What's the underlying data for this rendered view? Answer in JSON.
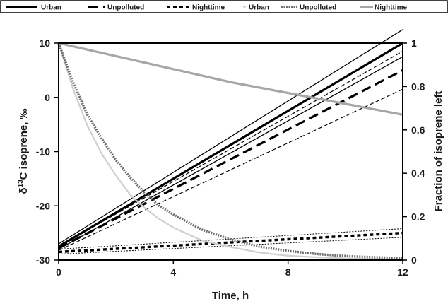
{
  "chart_data": {
    "type": "line",
    "xlabel": "Time, h",
    "ylabel_left": "δ13C isoprene, ‰",
    "ylabel_left_parts": [
      "δ",
      "13",
      "C isoprene, ‰"
    ],
    "ylabel_right": "Fraction of isoprene left",
    "xlim": [
      0,
      12
    ],
    "ylim_left": [
      -30,
      10
    ],
    "ylim_right": [
      0,
      1
    ],
    "x_ticks": [
      0,
      4,
      8,
      12
    ],
    "y_left_ticks": [
      -30,
      -20,
      -10,
      0,
      10
    ],
    "y_right_ticks": [
      0,
      0.2,
      0.4,
      0.6,
      0.8,
      1
    ],
    "y_right_tick_labels": [
      "0",
      "0.2",
      "0.4",
      "0.6",
      "0.8",
      "1"
    ],
    "legend": [
      {
        "label": "Urban",
        "color": "#000000",
        "style": "solid-thick"
      },
      {
        "label": "Unpolluted",
        "color": "#000000",
        "style": "dashed-thick"
      },
      {
        "label": "Nighttime",
        "color": "#000000",
        "style": "dashed-short"
      },
      {
        "label": "Urban",
        "color": "#cfcfcf",
        "style": "solid"
      },
      {
        "label": "Unpolluted",
        "color": "#6e6e6e",
        "style": "dotted-band"
      },
      {
        "label": "Nighttime",
        "color": "#a6a6a6",
        "style": "solid-thick"
      }
    ],
    "series": [
      {
        "axis": "left",
        "color": "#000000",
        "style": "solid-thick",
        "x": [
          0,
          12
        ],
        "y": [
          -27.5,
          10
        ]
      },
      {
        "axis": "left",
        "color": "#000000",
        "style": "solid-thin",
        "x": [
          0,
          12
        ],
        "y": [
          -27.0,
          12.5
        ]
      },
      {
        "axis": "left",
        "color": "#000000",
        "style": "solid-thin",
        "x": [
          0,
          12
        ],
        "y": [
          -28.0,
          7.5
        ]
      },
      {
        "axis": "left",
        "color": "#000000",
        "style": "dashed-thick",
        "x": [
          0,
          12
        ],
        "y": [
          -27.8,
          5.0
        ]
      },
      {
        "axis": "left",
        "color": "#000000",
        "style": "dashed-thin",
        "x": [
          0,
          12
        ],
        "y": [
          -27.5,
          8.5
        ]
      },
      {
        "axis": "left",
        "color": "#000000",
        "style": "dashed-thin",
        "x": [
          0,
          12
        ],
        "y": [
          -28.2,
          1.5
        ]
      },
      {
        "axis": "left",
        "color": "#000000",
        "style": "dashed-short",
        "x": [
          0,
          12
        ],
        "y": [
          -28.5,
          -25.0
        ]
      },
      {
        "axis": "left",
        "color": "#000000",
        "style": "dotted-thin",
        "x": [
          0,
          12
        ],
        "y": [
          -28.0,
          -24.2
        ]
      },
      {
        "axis": "left",
        "color": "#000000",
        "style": "dotted-thin",
        "x": [
          0,
          12
        ],
        "y": [
          -28.9,
          -25.8
        ]
      },
      {
        "axis": "right",
        "color": "#cfcfcf",
        "style": "solid",
        "x": [
          0,
          0.5,
          1,
          1.5,
          2,
          2.5,
          3,
          3.5,
          4,
          5,
          6,
          7,
          8,
          9,
          10,
          11,
          12
        ],
        "y": [
          1.0,
          0.79,
          0.62,
          0.49,
          0.39,
          0.3,
          0.24,
          0.19,
          0.15,
          0.09,
          0.06,
          0.035,
          0.02,
          0.013,
          0.008,
          0.005,
          0.003
        ]
      },
      {
        "axis": "right",
        "color": "#6e6e6e",
        "style": "dotted-band",
        "x": [
          0,
          0.5,
          1,
          1.5,
          2,
          2.5,
          3,
          3.5,
          4,
          5,
          6,
          7,
          8,
          9,
          10,
          11,
          12
        ],
        "y": [
          1.0,
          0.82,
          0.67,
          0.56,
          0.46,
          0.38,
          0.31,
          0.25,
          0.21,
          0.14,
          0.095,
          0.062,
          0.042,
          0.028,
          0.019,
          0.013,
          0.009
        ]
      },
      {
        "axis": "right",
        "color": "#a6a6a6",
        "style": "solid-thick",
        "x": [
          0,
          2,
          4,
          6,
          8,
          10,
          12
        ],
        "y": [
          1.0,
          0.94,
          0.88,
          0.82,
          0.77,
          0.72,
          0.67
        ]
      }
    ]
  }
}
